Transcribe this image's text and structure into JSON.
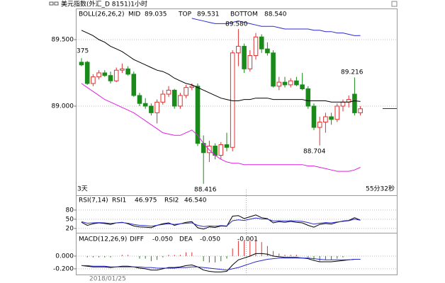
{
  "title": "美元指数(外汇_D 8151)1小时",
  "date_label": "2018/01/25",
  "chart_data": [
    {
      "type": "candlestick",
      "indicator": "BOLL(26,26,2)",
      "left_note": "3天",
      "right_note": "55分32秒",
      "up_color": "#e03030",
      "down_color": "#1a8a1a",
      "open": [
        89.33,
        89.33,
        89.17,
        89.22,
        89.25,
        89.23,
        89.19,
        89.27,
        89.28,
        89.24,
        89.08,
        89.02,
        89.0,
        88.95,
        89.03,
        89.09,
        89.12,
        89.0,
        89.08,
        89.14,
        89.15,
        88.72,
        88.65,
        88.7,
        88.63,
        88.71,
        88.69,
        89.4,
        89.45,
        89.28,
        89.38,
        89.52,
        89.43,
        89.4,
        89.15,
        89.18,
        89.16,
        89.19,
        89.16,
        89.13,
        89.0,
        88.84,
        88.88,
        88.92,
        88.9,
        89.0,
        89.03,
        89.09,
        88.95
      ],
      "high": [
        89.36,
        89.34,
        89.24,
        89.27,
        89.27,
        89.26,
        89.29,
        89.32,
        89.3,
        89.26,
        89.1,
        89.06,
        89.02,
        89.05,
        89.12,
        89.15,
        89.13,
        89.1,
        89.16,
        89.17,
        89.17,
        88.78,
        88.74,
        88.72,
        88.73,
        88.8,
        89.42,
        89.58,
        89.47,
        89.42,
        89.55,
        89.54,
        89.48,
        89.42,
        89.22,
        89.22,
        89.21,
        89.22,
        89.25,
        89.15,
        89.02,
        88.92,
        88.95,
        88.95,
        89.02,
        89.05,
        89.08,
        89.216,
        89.0
      ],
      "low": [
        89.3,
        89.16,
        89.15,
        89.2,
        89.22,
        89.17,
        89.18,
        89.25,
        89.23,
        89.07,
        89.0,
        88.98,
        88.93,
        88.87,
        89.01,
        89.07,
        88.98,
        88.98,
        89.06,
        89.12,
        88.7,
        88.416,
        88.58,
        88.6,
        88.6,
        88.66,
        88.66,
        89.3,
        89.25,
        89.26,
        89.35,
        89.4,
        89.38,
        89.14,
        89.12,
        89.14,
        89.14,
        89.15,
        89.12,
        88.98,
        88.82,
        88.704,
        88.8,
        88.86,
        88.88,
        88.96,
        88.99,
        88.93,
        88.93
      ],
      "close": [
        89.31,
        89.17,
        89.22,
        89.25,
        89.23,
        89.19,
        89.27,
        89.28,
        89.24,
        89.08,
        89.02,
        89.0,
        88.95,
        89.03,
        89.09,
        89.12,
        89.0,
        89.08,
        89.14,
        89.15,
        88.72,
        88.65,
        88.7,
        88.63,
        88.71,
        88.69,
        89.4,
        89.45,
        89.28,
        89.38,
        89.52,
        89.43,
        89.4,
        89.15,
        89.18,
        89.16,
        89.19,
        89.16,
        89.13,
        89.0,
        88.84,
        88.88,
        88.92,
        88.9,
        89.0,
        89.03,
        89.05,
        88.95,
        88.98
      ],
      "series": [
        {
          "name": "MID",
          "color": "#000000",
          "value_label": "89.035",
          "values": [
            89.57,
            89.55,
            89.53,
            89.5,
            89.48,
            89.45,
            89.43,
            89.41,
            89.38,
            89.35,
            89.33,
            89.31,
            89.29,
            89.27,
            89.26,
            89.24,
            89.21,
            89.19,
            89.17,
            89.16,
            89.14,
            89.12,
            89.1,
            89.08,
            89.06,
            89.05,
            89.04,
            89.04,
            89.05,
            89.05,
            89.06,
            89.06,
            89.06,
            89.05,
            89.05,
            89.05,
            89.05,
            89.05,
            89.05,
            89.04,
            89.04,
            89.04,
            89.04,
            89.03,
            89.03,
            89.03,
            89.03,
            89.04,
            89.035
          ]
        },
        {
          "name": "TOP",
          "color": "#2a2ad0",
          "value_label": "89.531",
          "values": [
            null,
            null,
            null,
            null,
            null,
            null,
            null,
            null,
            null,
            null,
            null,
            null,
            null,
            null,
            null,
            null,
            null,
            null,
            null,
            89.66,
            89.65,
            89.64,
            89.63,
            89.62,
            89.62,
            89.62,
            89.63,
            89.64,
            89.63,
            89.62,
            89.61,
            89.6,
            89.6,
            89.6,
            89.59,
            89.58,
            89.58,
            89.58,
            89.58,
            89.58,
            89.57,
            89.57,
            89.56,
            89.56,
            89.55,
            89.55,
            89.54,
            89.53,
            89.531
          ]
        },
        {
          "name": "BOTTOM",
          "color": "#e020e0",
          "value_label": "88.540",
          "values": [
            89.17,
            89.14,
            89.11,
            89.08,
            89.05,
            89.03,
            89.01,
            88.99,
            88.97,
            88.95,
            88.92,
            88.89,
            88.86,
            88.83,
            88.8,
            88.79,
            88.78,
            88.78,
            88.8,
            88.82,
            88.78,
            88.72,
            88.67,
            88.63,
            88.6,
            88.58,
            88.57,
            88.57,
            88.56,
            88.56,
            88.56,
            88.56,
            88.56,
            88.56,
            88.56,
            88.56,
            88.56,
            88.56,
            88.56,
            88.55,
            88.55,
            88.54,
            88.53,
            88.52,
            88.51,
            88.51,
            88.51,
            88.52,
            88.54
          ]
        }
      ],
      "annotations": [
        {
          "text": "375",
          "color": "#e03030"
        },
        {
          "text": "89.580",
          "color": "#e03030"
        },
        {
          "text": "89.216",
          "color": "#e03030"
        },
        {
          "text": "88.416",
          "color": "#1a8a1a"
        },
        {
          "text": "88.704",
          "color": "#1a8a1a"
        }
      ],
      "ylim": [
        88.335,
        89.734
      ],
      "yticks": [
        {
          "value": 89.5,
          "label": "89.500"
        },
        {
          "value": 89.0,
          "label": "89.000"
        }
      ],
      "grid": true
    },
    {
      "type": "line",
      "indicator": "RSI(7,14)",
      "series": [
        {
          "name": "RSI1",
          "color": "#000000",
          "value_label": "46.975",
          "values": [
            40,
            30,
            35,
            38,
            36,
            33,
            38,
            40,
            35,
            28,
            25,
            24,
            22,
            30,
            35,
            38,
            30,
            35,
            40,
            42,
            22,
            18,
            25,
            23,
            28,
            27,
            60,
            62,
            52,
            58,
            64,
            55,
            52,
            38,
            42,
            40,
            43,
            40,
            38,
            30,
            24,
            33,
            36,
            34,
            40,
            44,
            46,
            55,
            46.975
          ]
        },
        {
          "name": "RSI2",
          "color": "#2a2ad0",
          "value_label": "46.540",
          "values": [
            42,
            37,
            38,
            39,
            38,
            36,
            38,
            39,
            37,
            33,
            30,
            29,
            27,
            30,
            33,
            35,
            33,
            35,
            37,
            38,
            30,
            26,
            28,
            27,
            29,
            28,
            45,
            48,
            46,
            50,
            54,
            51,
            50,
            44,
            45,
            44,
            45,
            44,
            43,
            39,
            34,
            37,
            39,
            38,
            41,
            43,
            45,
            50,
            46.54
          ]
        }
      ],
      "ylim": [
        8,
        126
      ],
      "yticks": [
        80,
        50,
        20
      ],
      "grid": true
    },
    {
      "type": "macd",
      "indicator": "MACD(12,26,9)",
      "bar_label": "-0.001",
      "up_color": "#e03030",
      "down_color": "#1a8a1a",
      "bars": [
        0,
        -0.02,
        -0.02,
        -0.02,
        -0.02,
        -0.02,
        0,
        0.02,
        0.02,
        0,
        -0.04,
        -0.04,
        -0.08,
        -0.06,
        -0.02,
        0.02,
        0.02,
        0.02,
        0.06,
        0.06,
        0,
        -0.08,
        -0.1,
        -0.1,
        -0.08,
        -0.04,
        0.12,
        0.24,
        0.24,
        0.24,
        0.26,
        0.22,
        0.16,
        0.08,
        0.04,
        0.02,
        0.02,
        0.02,
        0,
        -0.02,
        -0.06,
        -0.08,
        -0.06,
        -0.06,
        -0.04,
        -0.02,
        0,
        0,
        -0.001
      ],
      "series": [
        {
          "name": "DIFF",
          "color": "#000000",
          "value_label": "-0.050",
          "values": [
            -0.15,
            -0.16,
            -0.17,
            -0.17,
            -0.17,
            -0.18,
            -0.17,
            -0.16,
            -0.16,
            -0.17,
            -0.19,
            -0.2,
            -0.22,
            -0.22,
            -0.2,
            -0.18,
            -0.18,
            -0.17,
            -0.15,
            -0.14,
            -0.17,
            -0.22,
            -0.24,
            -0.25,
            -0.25,
            -0.24,
            -0.14,
            -0.06,
            -0.03,
            0.0,
            0.04,
            0.04,
            0.03,
            0.0,
            -0.01,
            -0.02,
            -0.02,
            -0.02,
            -0.03,
            -0.04,
            -0.07,
            -0.09,
            -0.09,
            -0.09,
            -0.08,
            -0.07,
            -0.06,
            -0.05,
            -0.05
          ]
        },
        {
          "name": "DEA",
          "color": "#2a2ad0",
          "value_label": "-0.050",
          "values": [
            -0.15,
            -0.15,
            -0.16,
            -0.16,
            -0.16,
            -0.17,
            -0.17,
            -0.17,
            -0.17,
            -0.17,
            -0.17,
            -0.18,
            -0.18,
            -0.19,
            -0.19,
            -0.19,
            -0.19,
            -0.18,
            -0.18,
            -0.17,
            -0.17,
            -0.18,
            -0.19,
            -0.2,
            -0.21,
            -0.22,
            -0.2,
            -0.18,
            -0.15,
            -0.12,
            -0.09,
            -0.07,
            -0.05,
            -0.04,
            -0.03,
            -0.03,
            -0.03,
            -0.03,
            -0.03,
            -0.03,
            -0.04,
            -0.05,
            -0.06,
            -0.06,
            -0.06,
            -0.06,
            -0.06,
            -0.05,
            -0.05
          ]
        }
      ],
      "ylim": [
        -0.29,
        0.356
      ],
      "yticks": [
        {
          "value": 0,
          "label": "0.000"
        },
        {
          "value": -0.2,
          "label": "-0.200"
        }
      ],
      "grid": true
    }
  ]
}
